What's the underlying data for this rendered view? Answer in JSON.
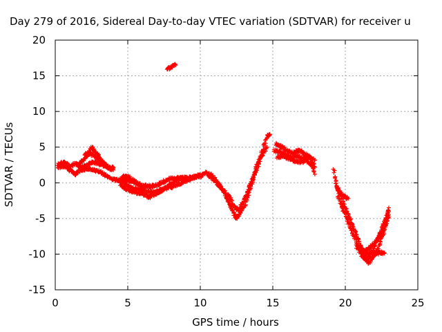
{
  "chart_data": {
    "type": "scatter",
    "title": "Day 279 of 2016, Sidereal Day-to-day VTEC variation (SDTVAR) for receiver u",
    "xlabel": "GPS time / hours",
    "ylabel": "SDTVAR / TECUs",
    "xlim": [
      0,
      25
    ],
    "ylim": [
      -15,
      20
    ],
    "xticks": [
      0,
      5,
      10,
      15,
      20,
      25
    ],
    "yticks": [
      -15,
      -10,
      -5,
      0,
      5,
      10,
      15,
      20
    ],
    "xtick_labels": [
      "0",
      "5",
      "10",
      "15",
      "20",
      "25"
    ],
    "ytick_labels": [
      "-15",
      "-10",
      "-5",
      "0",
      "5",
      "10",
      "15",
      "20"
    ],
    "grid": true,
    "marker": "plus",
    "color": "#ff0000",
    "tracks": [
      [
        [
          0.2,
          2.6
        ],
        [
          0.6,
          2.9
        ],
        [
          1.0,
          2.3
        ],
        [
          1.4,
          2.7
        ],
        [
          1.8,
          2.2
        ],
        [
          2.2,
          2.5
        ],
        [
          2.6,
          2.9
        ],
        [
          3.0,
          2.7
        ],
        [
          3.4,
          2.4
        ],
        [
          3.8,
          2.0
        ],
        [
          4.0,
          2.2
        ]
      ],
      [
        [
          0.2,
          2.2
        ],
        [
          0.6,
          2.3
        ],
        [
          1.0,
          1.8
        ],
        [
          1.4,
          1.2
        ],
        [
          1.8,
          1.8
        ],
        [
          2.2,
          2.0
        ],
        [
          2.6,
          1.8
        ],
        [
          3.0,
          1.6
        ],
        [
          3.5,
          1.0
        ],
        [
          4.0,
          0.5
        ],
        [
          4.5,
          0.2
        ],
        [
          5.0,
          -0.5
        ],
        [
          5.5,
          -0.8
        ],
        [
          6.0,
          -1.0
        ],
        [
          6.5,
          -1.3
        ],
        [
          7.0,
          -1.2
        ],
        [
          7.5,
          -0.9
        ],
        [
          8.0,
          -0.6
        ],
        [
          8.5,
          -0.2
        ],
        [
          9.0,
          0.3
        ],
        [
          9.5,
          0.7
        ],
        [
          10.0,
          1.1
        ]
      ],
      [
        [
          1.6,
          2.6
        ],
        [
          2.0,
          3.3
        ],
        [
          2.2,
          3.8
        ],
        [
          2.5,
          5.0
        ],
        [
          2.8,
          4.3
        ],
        [
          3.0,
          3.7
        ],
        [
          3.2,
          3.0
        ],
        [
          3.5,
          2.2
        ]
      ],
      [
        [
          2.0,
          4.0
        ],
        [
          2.4,
          4.1
        ],
        [
          2.7,
          3.8
        ],
        [
          3.0,
          3.3
        ],
        [
          3.4,
          2.7
        ],
        [
          3.8,
          2.0
        ],
        [
          4.0,
          1.8
        ]
      ],
      [
        [
          4.5,
          0.5
        ],
        [
          5.0,
          0.4
        ],
        [
          5.5,
          0.0
        ],
        [
          6.0,
          -0.4
        ],
        [
          6.5,
          -0.5
        ],
        [
          7.0,
          -0.3
        ],
        [
          7.5,
          0.2
        ],
        [
          8.0,
          0.6
        ],
        [
          8.5,
          0.7
        ],
        [
          9.0,
          0.6
        ],
        [
          9.5,
          0.8
        ],
        [
          10.0,
          1.0
        ]
      ],
      [
        [
          4.5,
          -0.3
        ],
        [
          5.0,
          -1.0
        ],
        [
          5.5,
          -1.3
        ],
        [
          6.0,
          -1.6
        ],
        [
          6.5,
          -2.0
        ],
        [
          7.0,
          -1.5
        ],
        [
          7.5,
          -0.8
        ],
        [
          8.0,
          -0.2
        ],
        [
          8.5,
          0.5
        ],
        [
          9.0,
          0.8
        ]
      ],
      [
        [
          4.6,
          0.8
        ],
        [
          5.0,
          0.9
        ],
        [
          5.4,
          0.3
        ],
        [
          5.8,
          -0.2
        ],
        [
          6.2,
          -0.6
        ]
      ],
      [
        [
          10.0,
          0.9
        ],
        [
          10.4,
          1.5
        ],
        [
          10.8,
          1.0
        ],
        [
          11.2,
          0.0
        ],
        [
          11.6,
          -1.2
        ],
        [
          12.0,
          -2.8
        ],
        [
          12.3,
          -4.2
        ],
        [
          12.5,
          -5.0
        ],
        [
          12.8,
          -4.0
        ],
        [
          13.1,
          -3.0
        ],
        [
          13.4,
          -1.0
        ],
        [
          13.7,
          1.0
        ],
        [
          14.0,
          3.0
        ],
        [
          14.3,
          4.5
        ],
        [
          14.6,
          6.5
        ],
        [
          14.8,
          6.8
        ]
      ],
      [
        [
          10.5,
          1.2
        ],
        [
          11.0,
          0.3
        ],
        [
          11.5,
          -0.8
        ],
        [
          12.0,
          -2.0
        ],
        [
          12.4,
          -3.5
        ],
        [
          12.7,
          -3.8
        ],
        [
          13.0,
          -2.5
        ],
        [
          13.4,
          -0.5
        ],
        [
          13.8,
          1.5
        ],
        [
          14.2,
          3.5
        ],
        [
          14.6,
          5.0
        ]
      ],
      [
        [
          15.2,
          5.5
        ],
        [
          15.6,
          5.0
        ],
        [
          16.0,
          4.5
        ],
        [
          16.4,
          4.2
        ],
        [
          16.8,
          4.5
        ],
        [
          17.2,
          4.0
        ],
        [
          17.6,
          3.5
        ],
        [
          17.9,
          3.2
        ]
      ],
      [
        [
          15.3,
          3.5
        ],
        [
          15.7,
          3.8
        ],
        [
          16.1,
          3.4
        ],
        [
          16.5,
          3.1
        ],
        [
          16.9,
          2.9
        ],
        [
          17.3,
          3.2
        ],
        [
          17.7,
          2.5
        ],
        [
          17.9,
          1.2
        ]
      ],
      [
        [
          15.1,
          4.5
        ],
        [
          15.5,
          4.3
        ],
        [
          15.9,
          3.9
        ],
        [
          16.3,
          3.6
        ],
        [
          16.7,
          3.8
        ],
        [
          17.1,
          3.3
        ],
        [
          17.5,
          3.7
        ],
        [
          17.9,
          2.2
        ]
      ],
      [
        [
          19.2,
          1.8
        ],
        [
          19.3,
          0.5
        ],
        [
          19.5,
          -1.0
        ],
        [
          19.8,
          -2.5
        ],
        [
          20.1,
          -4.0
        ],
        [
          20.4,
          -5.5
        ],
        [
          20.7,
          -7.0
        ],
        [
          21.0,
          -8.5
        ],
        [
          21.2,
          -9.5
        ],
        [
          21.4,
          -10.3
        ],
        [
          21.6,
          -10.5
        ],
        [
          21.9,
          -9.5
        ],
        [
          22.2,
          -8.0
        ],
        [
          22.5,
          -6.5
        ],
        [
          22.8,
          -5.0
        ],
        [
          23.0,
          -4.0
        ]
      ],
      [
        [
          19.4,
          -0.5
        ],
        [
          19.7,
          -1.5
        ],
        [
          20.0,
          -2.0
        ],
        [
          20.2,
          -2.2
        ]
      ],
      [
        [
          19.5,
          -1.8
        ],
        [
          19.8,
          -3.5
        ],
        [
          20.1,
          -5.0
        ],
        [
          20.4,
          -6.5
        ],
        [
          20.7,
          -8.0
        ],
        [
          20.9,
          -9.2
        ],
        [
          21.1,
          -10.0
        ],
        [
          21.3,
          -10.6
        ],
        [
          21.6,
          -11.3
        ],
        [
          21.8,
          -10.8
        ],
        [
          22.1,
          -9.8
        ],
        [
          22.4,
          -8.5
        ],
        [
          22.7,
          -6.5
        ],
        [
          23.0,
          -3.5
        ]
      ],
      [
        [
          20.8,
          -9.0
        ],
        [
          21.2,
          -9.5
        ],
        [
          21.6,
          -9.8
        ],
        [
          22.0,
          -10.0
        ],
        [
          22.4,
          -9.8
        ],
        [
          22.7,
          -9.8
        ]
      ],
      [
        [
          21.2,
          -9.8
        ],
        [
          21.6,
          -9.3
        ],
        [
          22.0,
          -8.5
        ],
        [
          22.4,
          -7.5
        ],
        [
          22.8,
          -6.0
        ],
        [
          23.0,
          -4.5
        ]
      ],
      [
        [
          7.7,
          16.0
        ],
        [
          7.9,
          16.1
        ],
        [
          8.1,
          16.3
        ],
        [
          8.3,
          16.5
        ]
      ]
    ]
  }
}
